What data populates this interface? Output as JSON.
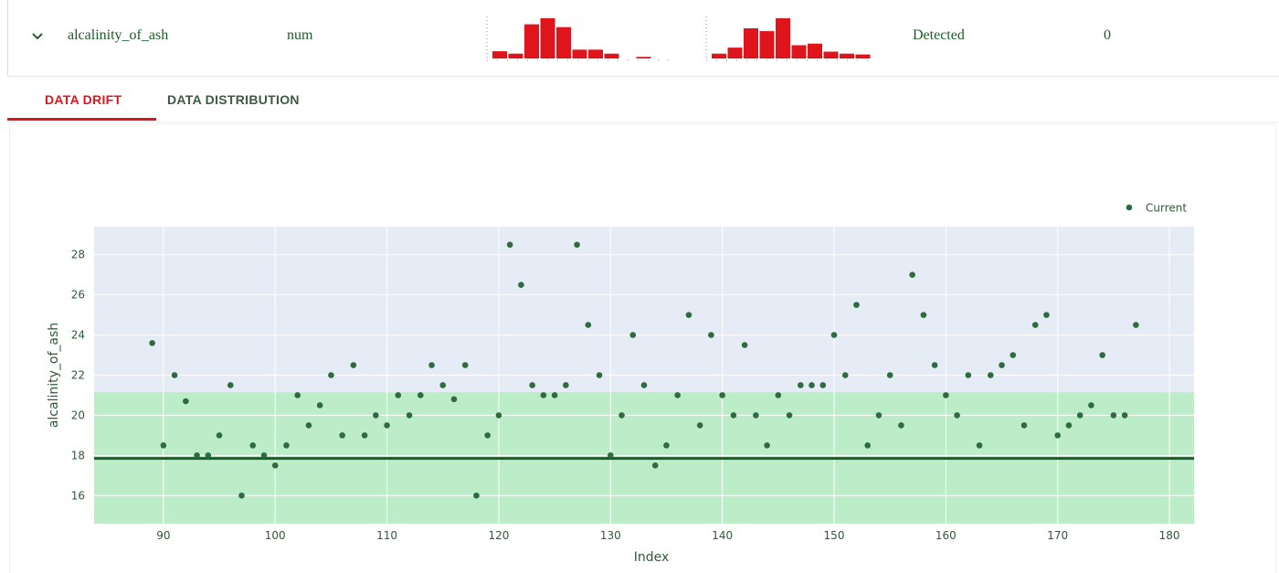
{
  "feature_row": {
    "name": "alcalinity_of_ash",
    "type": "num",
    "drift_status": "Detected",
    "drift_score": "0",
    "reference_histogram": [
      0.18,
      0.12,
      0.85,
      1.0,
      0.78,
      0.22,
      0.22,
      0.12,
      0.0,
      0.04
    ],
    "current_histogram": [
      0.12,
      0.27,
      0.75,
      0.68,
      1.0,
      0.33,
      0.37,
      0.17,
      0.12,
      0.1
    ]
  },
  "tabs": {
    "drift": "DATA DRIFT",
    "distribution": "DATA DISTRIBUTION"
  },
  "colors": {
    "accent": "#e0151b",
    "point": "#2e6b3e",
    "band": "#bcecc8",
    "plot_bg": "#e5ecf6",
    "ref_line": "#1e5a2c"
  },
  "chart_data": {
    "type": "scatter",
    "xlabel": "Index",
    "ylabel": "alcalinity_of_ash",
    "xlim": [
      83.8,
      182.2
    ],
    "ylim": [
      14.6,
      29.4
    ],
    "x_ticks": [
      90,
      100,
      110,
      120,
      130,
      140,
      150,
      160,
      170,
      180
    ],
    "y_ticks": [
      16,
      18,
      20,
      22,
      24,
      26,
      28
    ],
    "legend": {
      "label": "Current",
      "placement": "top-right"
    },
    "reference_line": 17.85,
    "band": [
      14.6,
      21.15
    ],
    "series": [
      {
        "name": "Current",
        "x": [
          89,
          90,
          91,
          92,
          93,
          94,
          95,
          96,
          97,
          98,
          99,
          100,
          101,
          102,
          103,
          104,
          105,
          106,
          107,
          108,
          109,
          110,
          111,
          112,
          113,
          114,
          115,
          116,
          117,
          118,
          119,
          120,
          121,
          122,
          123,
          124,
          125,
          126,
          127,
          128,
          129,
          130,
          131,
          132,
          133,
          134,
          135,
          136,
          137,
          138,
          139,
          140,
          141,
          142,
          143,
          144,
          145,
          146,
          147,
          148,
          149,
          150,
          151,
          152,
          153,
          154,
          155,
          156,
          157,
          158,
          159,
          160,
          161,
          162,
          163,
          164,
          165,
          166,
          167,
          168,
          169,
          170,
          171,
          172,
          173,
          174,
          175,
          176,
          177
        ],
        "y": [
          23.6,
          18.5,
          22,
          20.7,
          18,
          18,
          19,
          21.5,
          16,
          18.5,
          18,
          17.5,
          18.5,
          21,
          19.5,
          20.5,
          22,
          19,
          22.5,
          19,
          20,
          19.5,
          21,
          20,
          21,
          22.5,
          21.5,
          20.8,
          22.5,
          16,
          19,
          20,
          28.5,
          26.5,
          21.5,
          21,
          21,
          21.5,
          28.5,
          24.5,
          22,
          18,
          20,
          24,
          21.5,
          17.5,
          18.5,
          21,
          25,
          19.5,
          24,
          21,
          20,
          23.5,
          20,
          18.5,
          21,
          20,
          21.5,
          21.5,
          21.5,
          24,
          22,
          25.5,
          18.5,
          20,
          22,
          19.5,
          27,
          25,
          22.5,
          21,
          20,
          22,
          18.5,
          22,
          22.5,
          23,
          19.5,
          24.5,
          25,
          19,
          19.5,
          20,
          20.5,
          23,
          20,
          20,
          24.5
        ]
      }
    ]
  }
}
